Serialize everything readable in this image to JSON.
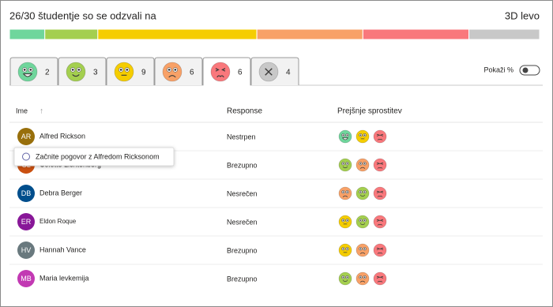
{
  "header": {
    "title": "26/30 študentje so se odzvali na",
    "time_left": "3D levo"
  },
  "tabs": {
    "counts": [
      2,
      3,
      9,
      6,
      6,
      4
    ],
    "colors": [
      "#6fd69c",
      "#a4cf4f",
      "#f5cd00",
      "#f8a167",
      "#f9787c",
      "#c8c8c8"
    ]
  },
  "toggle_label": "Pokaži %",
  "table": {
    "columns": [
      "Ime",
      "Response",
      "Prejšnje sprostitev"
    ],
    "rows": [
      [
        "AR",
        "Alfred Rickson",
        "Nestrpen"
      ],
      [
        "CL",
        "Colette Lichtenberg",
        "Brezupno"
      ],
      [
        "DB",
        "Debra Berger",
        "Nesrečen"
      ],
      [
        "ER",
        "Eldon Roque",
        "Nesrečen"
      ],
      [
        "HV",
        "Hannah Vance",
        "Brezupno"
      ],
      [
        "MB",
        "Maria levkemija",
        "Brezupno"
      ]
    ]
  },
  "tooltip": "Začnite pogovor z Alfredom Ricksonom"
}
